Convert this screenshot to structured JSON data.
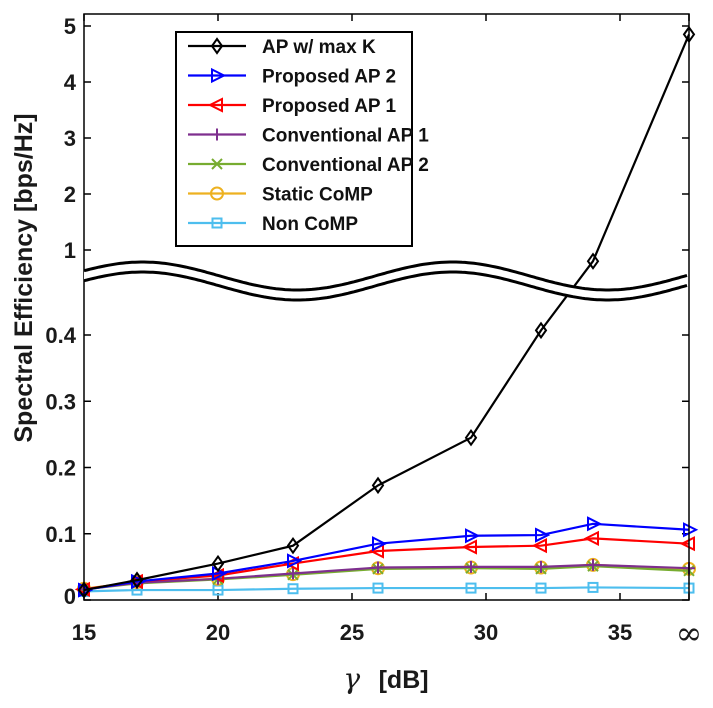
{
  "chart_data": {
    "type": "line",
    "title": "",
    "xlabel_symbol": "γ",
    "xlabel_unit": "[dB]",
    "ylabel": "Spectral Efficiency [bps/Hz]",
    "x_tick_labels": [
      "15",
      "20",
      "25",
      "30",
      "35",
      "∞"
    ],
    "y_tick_labels_lower": [
      "0",
      "0.1",
      "0.2",
      "0.3",
      "0.4"
    ],
    "y_tick_labels_upper": [
      "1",
      "2",
      "3",
      "4",
      "5"
    ],
    "ylim_lower": [
      0,
      0.45
    ],
    "ylim_upper": [
      0.75,
      5.1
    ],
    "x": [
      "15",
      "17",
      "20",
      "23",
      "26.2",
      "29.8",
      "32.3",
      "34.3",
      "∞"
    ],
    "axis_break": "between 0.45 and 0.75",
    "grid": false,
    "legend_position": "top-center",
    "series": [
      {
        "name": "AP w/ max K",
        "color": "#000000",
        "marker": "diamond",
        "values": [
          0.015,
          0.03,
          0.055,
          0.082,
          0.173,
          0.245,
          0.407,
          0.8,
          4.85
        ]
      },
      {
        "name": "Proposed AP 2",
        "color": "#0000ff",
        "marker": "triangle-right",
        "values": [
          0.015,
          0.028,
          0.04,
          0.059,
          0.085,
          0.097,
          0.098,
          0.115,
          0.106
        ]
      },
      {
        "name": "Proposed AP 1",
        "color": "#ff0000",
        "marker": "triangle-left",
        "values": [
          0.016,
          0.028,
          0.037,
          0.055,
          0.074,
          0.08,
          0.082,
          0.093,
          0.085
        ]
      },
      {
        "name": "Conventional AP 1",
        "color": "#7e2f8e",
        "marker": "plus",
        "values": [
          0.016,
          0.026,
          0.032,
          0.04,
          0.049,
          0.05,
          0.05,
          0.053,
          0.048
        ]
      },
      {
        "name": "Conventional AP 2",
        "color": "#77ac30",
        "marker": "x",
        "values": [
          0.016,
          0.025,
          0.031,
          0.038,
          0.047,
          0.048,
          0.047,
          0.051,
          0.044
        ]
      },
      {
        "name": "Static CoMP",
        "color": "#edb120",
        "marker": "circle",
        "values": [
          0.017,
          0.027,
          0.032,
          0.039,
          0.048,
          0.049,
          0.049,
          0.053,
          0.047
        ]
      },
      {
        "name": "Non CoMP",
        "color": "#4dbeee",
        "marker": "square",
        "values": [
          0.013,
          0.015,
          0.015,
          0.017,
          0.018,
          0.018,
          0.018,
          0.019,
          0.018
        ]
      }
    ]
  }
}
